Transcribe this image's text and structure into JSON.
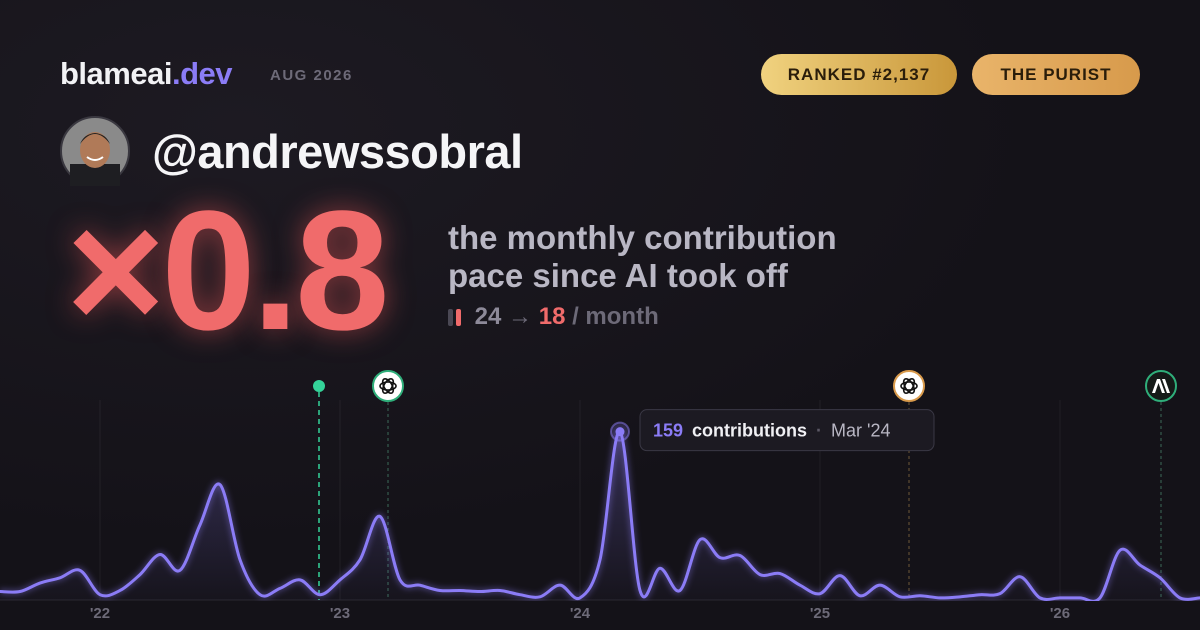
{
  "header": {
    "brand": "blameai",
    "brand_suffix": ".dev",
    "date": "AUG 2026",
    "badges": [
      "RANKED #2,137",
      "THE PURIST"
    ]
  },
  "profile": {
    "handle": "@andrewssobral"
  },
  "stat": {
    "multiplier": "×0.8",
    "description": [
      "the monthly contribution",
      "pace since AI took off"
    ],
    "before": 24,
    "arrow": "→",
    "after": 18,
    "unit": "/ month"
  },
  "chart_data": {
    "type": "line",
    "categories": [
      null,
      null,
      null,
      null,
      null,
      "'22",
      null,
      null,
      null,
      null,
      null,
      null,
      null,
      null,
      null,
      null,
      null,
      "'23",
      null,
      null,
      null,
      null,
      null,
      null,
      null,
      null,
      null,
      null,
      null,
      "'24",
      null,
      null,
      null,
      null,
      null,
      null,
      null,
      null,
      null,
      null,
      null,
      "'25",
      null,
      null,
      null,
      null,
      null,
      null,
      null,
      null,
      null,
      null,
      null,
      "'26",
      null,
      null,
      null,
      null,
      null,
      null,
      null
    ],
    "series": [
      {
        "name": "contributions",
        "color": "#8b7cf6",
        "values": [
          8,
          8,
          16,
          21,
          28,
          5,
          9,
          24,
          43,
          28,
          71,
          109,
          38,
          5,
          11,
          19,
          5,
          19,
          38,
          79,
          19,
          14,
          9,
          9,
          8,
          9,
          5,
          3,
          14,
          2,
          38,
          159,
          9,
          30,
          9,
          57,
          40,
          42,
          24,
          25,
          14,
          6,
          23,
          4,
          14,
          3,
          4,
          2,
          3,
          5,
          6,
          22,
          2,
          2,
          2,
          2,
          47,
          33,
          21,
          2,
          2
        ]
      }
    ],
    "ylim": [
      0,
      170
    ],
    "tooltip": {
      "separator": "·",
      "date": "Mar '24"
    }
  }
}
